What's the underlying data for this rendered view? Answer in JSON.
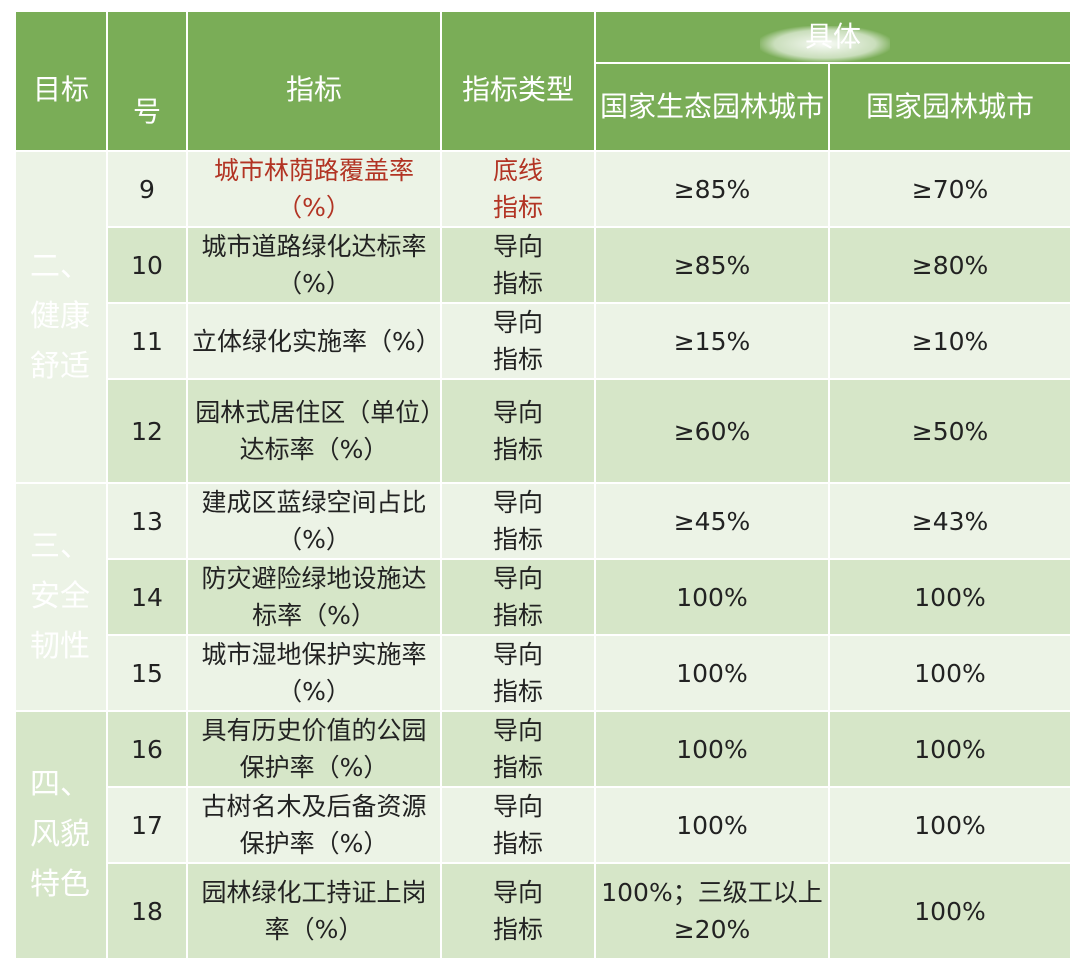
{
  "header": {
    "goal": "目标",
    "no": "号",
    "indicator": "指标",
    "type": "指标类型",
    "group": "具体",
    "eco_city": "国家生态园林城市",
    "garden_city": "国家园林城市"
  },
  "groups": [
    {
      "label": "二、健康舒适"
    },
    {
      "label": "三、安全韧性"
    },
    {
      "label": "四、风貌特色"
    }
  ],
  "rows": [
    {
      "no": "9",
      "name": "城市林荫路覆盖率（%）",
      "type": "底线指标",
      "eco": "≥85%",
      "garden": "≥70%"
    },
    {
      "no": "10",
      "name": "城市道路绿化达标率（%）",
      "type": "导向指标",
      "eco": "≥85%",
      "garden": "≥80%"
    },
    {
      "no": "11",
      "name": "立体绿化实施率（%）",
      "type": "导向指标",
      "eco": "≥15%",
      "garden": "≥10%"
    },
    {
      "no": "12",
      "name": "园林式居住区（单位）达标率（%）",
      "type": "导向指标",
      "eco": "≥60%",
      "garden": "≥50%"
    },
    {
      "no": "13",
      "name": "建成区蓝绿空间占比（%）",
      "type": "导向指标",
      "eco": "≥45%",
      "garden": "≥43%"
    },
    {
      "no": "14",
      "name": "防灾避险绿地设施达标率（%）",
      "type": "导向指标",
      "eco": "100%",
      "garden": "100%"
    },
    {
      "no": "15",
      "name": "城市湿地保护实施率（%）",
      "type": "导向指标",
      "eco": "100%",
      "garden": "100%"
    },
    {
      "no": "16",
      "name": "具有历史价值的公园保护率（%）",
      "type": "导向指标",
      "eco": "100%",
      "garden": "100%"
    },
    {
      "no": "17",
      "name": "古树名木及后备资源保护率（%）",
      "type": "导向指标",
      "eco": "100%",
      "garden": "100%"
    },
    {
      "no": "18",
      "name": "园林绿化工持证上岗率（%）",
      "type": "导向指标",
      "eco": "100%；三级工以上≥20%",
      "garden": "100%"
    }
  ]
}
